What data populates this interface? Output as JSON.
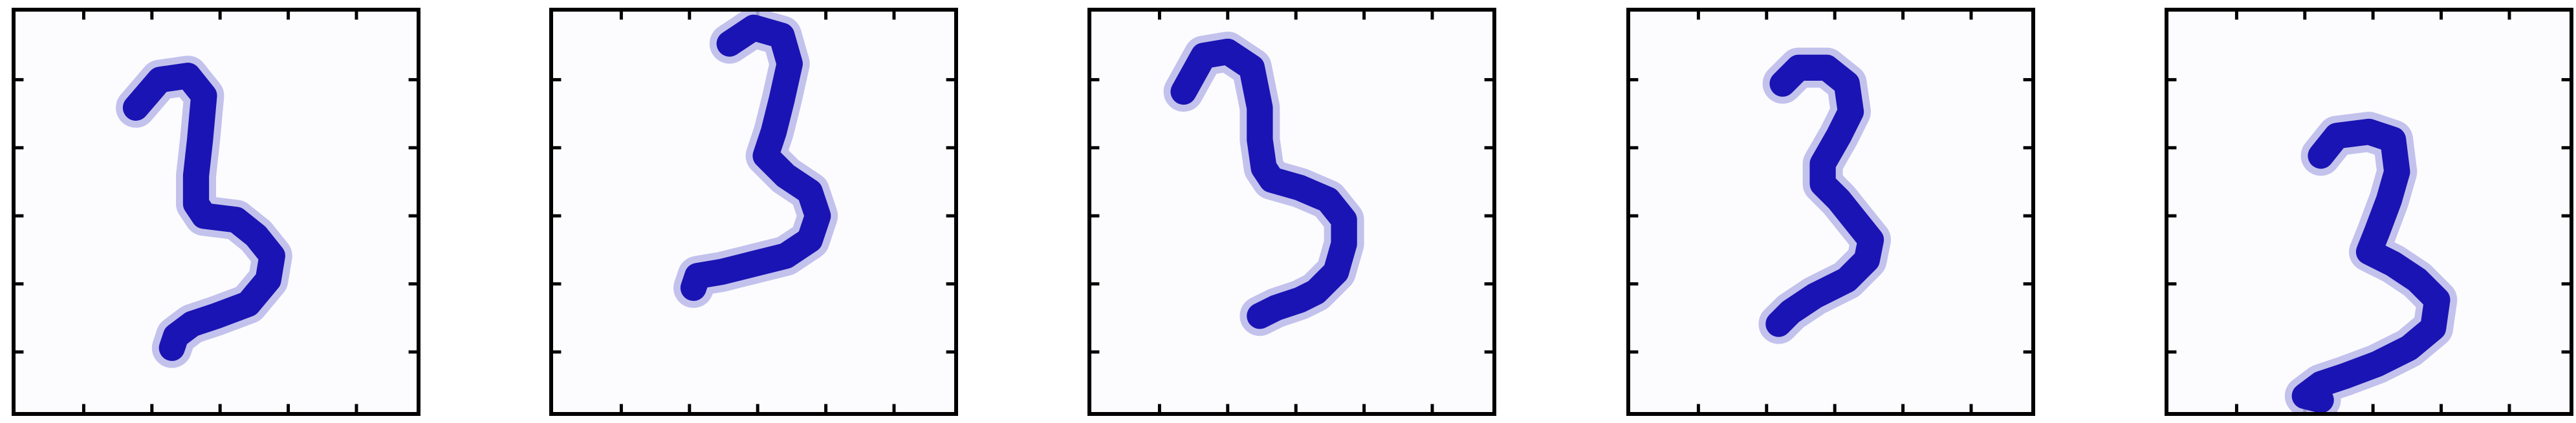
{
  "figure": {
    "panels": [
      {
        "id": 1,
        "digit_label": "3",
        "ink_color": "#1a14b4"
      },
      {
        "id": 2,
        "digit_label": "3",
        "ink_color": "#1a14b4"
      },
      {
        "id": 3,
        "digit_label": "3",
        "ink_color": "#1a14b4"
      },
      {
        "id": 4,
        "digit_label": "3",
        "ink_color": "#1a14b4"
      },
      {
        "id": 5,
        "digit_label": "3",
        "ink_color": "#1a14b4"
      }
    ],
    "ticks_per_side": 5,
    "colors": {
      "frame": "#000000",
      "background": "#fcfcff",
      "ink": "#1a14b4",
      "halo": "#b9b7ea"
    }
  }
}
